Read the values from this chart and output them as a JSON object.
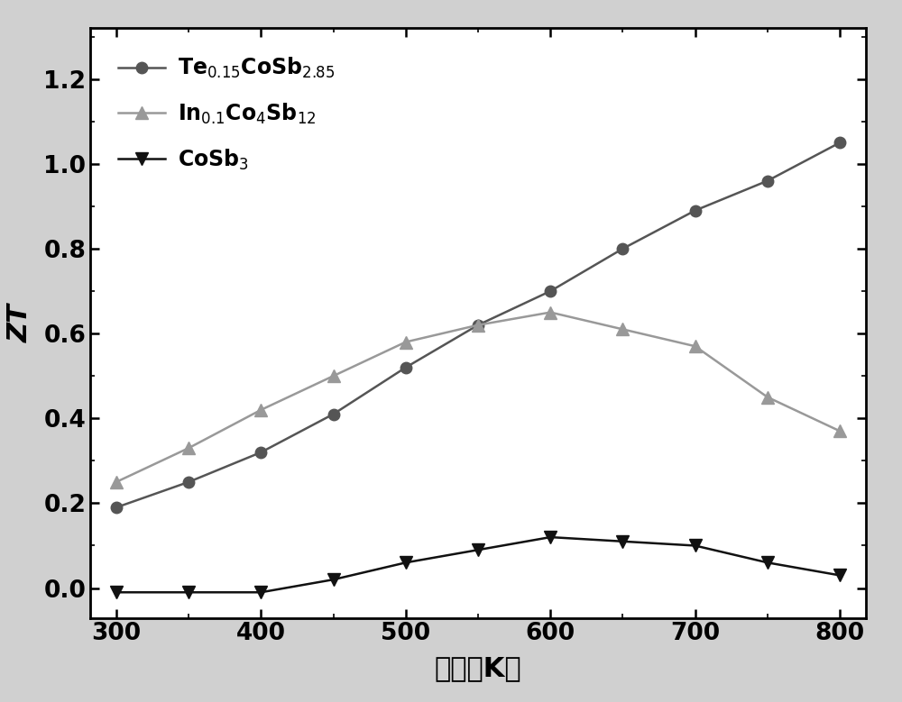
{
  "title": "",
  "xlabel_chinese": "温度（K）",
  "ylabel": "ZT",
  "xlim": [
    282,
    818
  ],
  "ylim": [
    -0.07,
    1.32
  ],
  "xticks": [
    300,
    400,
    500,
    600,
    700,
    800
  ],
  "yticks": [
    0.0,
    0.2,
    0.4,
    0.6,
    0.8,
    1.0,
    1.2
  ],
  "series": [
    {
      "legend": "Te$_{0.15}$CoSb$_{2.85}$",
      "x": [
        300,
        350,
        400,
        450,
        500,
        550,
        600,
        650,
        700,
        750,
        800
      ],
      "y": [
        0.19,
        0.25,
        0.32,
        0.41,
        0.52,
        0.62,
        0.7,
        0.8,
        0.89,
        0.96,
        1.05
      ],
      "color": "#555555",
      "marker": "o",
      "markersize": 9,
      "linewidth": 1.8
    },
    {
      "legend": "In$_{0.1}$Co$_4$Sb$_{12}$",
      "x": [
        300,
        350,
        400,
        450,
        500,
        550,
        600,
        650,
        700,
        750,
        800
      ],
      "y": [
        0.25,
        0.33,
        0.42,
        0.5,
        0.58,
        0.62,
        0.65,
        0.61,
        0.57,
        0.45,
        0.37
      ],
      "color": "#999999",
      "marker": "^",
      "markersize": 10,
      "linewidth": 1.8
    },
    {
      "legend": "CoSb$_3$",
      "x": [
        300,
        350,
        400,
        450,
        500,
        550,
        600,
        650,
        700,
        750,
        800
      ],
      "y": [
        -0.01,
        -0.01,
        -0.01,
        0.02,
        0.06,
        0.09,
        0.12,
        0.11,
        0.1,
        0.06,
        0.03
      ],
      "color": "#111111",
      "marker": "v",
      "markersize": 10,
      "linewidth": 1.8
    }
  ],
  "legend_fontsize": 17,
  "axis_label_fontsize": 22,
  "tick_fontsize": 19,
  "background_color": "#ffffff",
  "frame_color": "#000000",
  "outer_bg": "#d0d0d0"
}
